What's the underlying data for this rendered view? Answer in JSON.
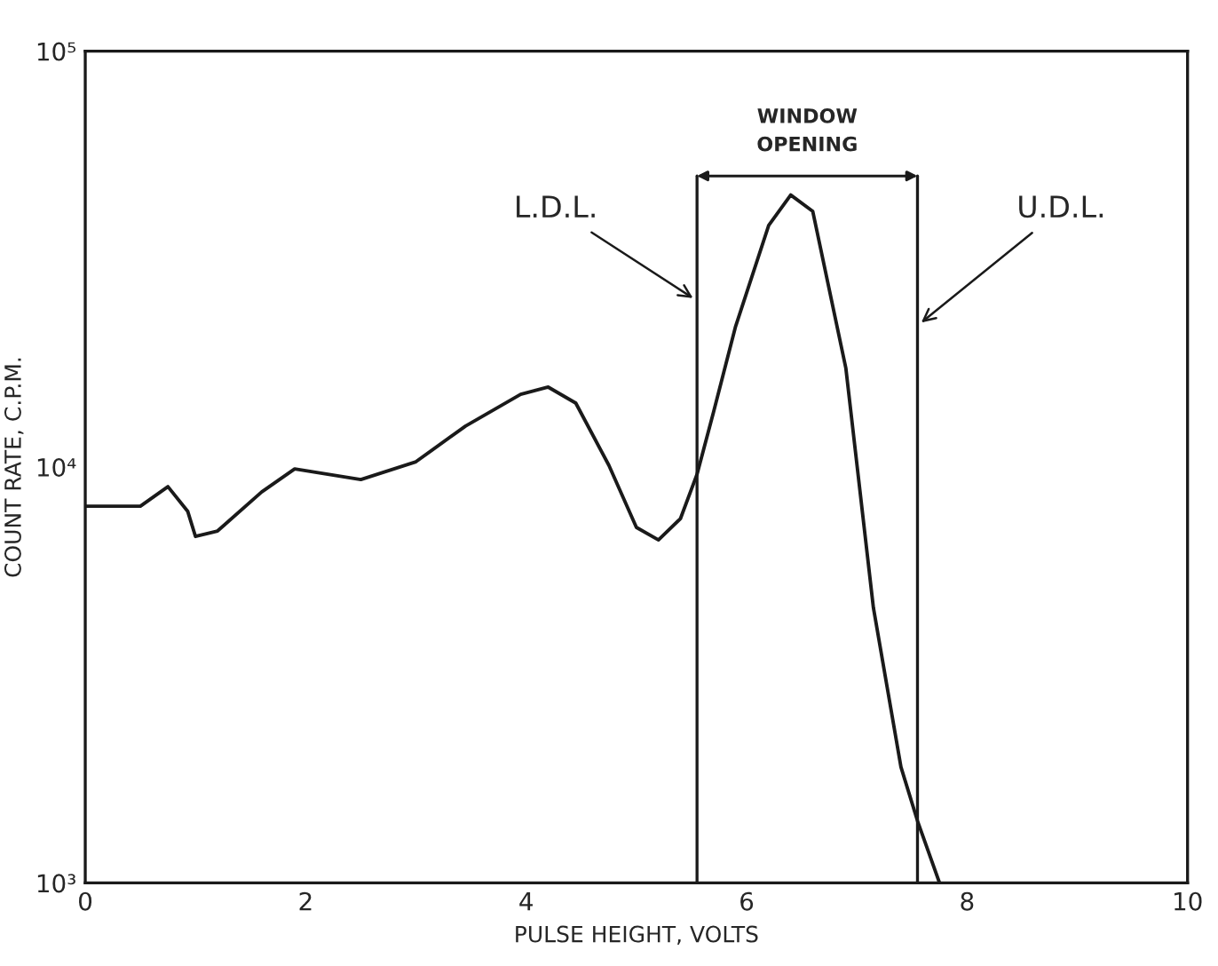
{
  "chart_data": {
    "type": "line",
    "xlabel": "PULSE HEIGHT, VOLTS",
    "ylabel": "COUNT RATE, C.P.M.",
    "x": [
      0,
      0.5,
      0.75,
      0.93,
      1.0,
      1.2,
      1.6,
      1.9,
      2.5,
      3.0,
      3.45,
      3.95,
      4.2,
      4.45,
      4.75,
      5.0,
      5.2,
      5.4,
      5.55,
      5.7,
      5.9,
      6.2,
      6.4,
      6.6,
      6.9,
      7.15,
      7.4,
      7.55,
      7.75
    ],
    "series": [
      {
        "color": "#1a1a1a",
        "values": [
          8050,
          8050,
          8970,
          7820,
          6810,
          7020,
          8710,
          9900,
          9330,
          10300,
          12550,
          14960,
          15570,
          14250,
          10100,
          7160,
          6680,
          7520,
          9610,
          13560,
          21800,
          38100,
          45100,
          41200,
          17300,
          4590,
          1900,
          1410,
          1000
        ]
      }
    ],
    "log": "y",
    "xlim": [
      0,
      10
    ],
    "xticks": [
      0,
      2,
      4,
      6,
      8,
      10
    ],
    "ylim": [
      1000,
      100000
    ],
    "yticks": [
      {
        "value": 1000,
        "label": "10³"
      },
      {
        "value": 10000,
        "label": "10⁴"
      },
      {
        "value": 100000,
        "label": "10⁵"
      }
    ],
    "grid": false,
    "marker": "none",
    "line_style": "solid",
    "ref_lines": [
      {
        "axis": "x",
        "value": 5.55,
        "label": "L.D.L.",
        "color": "#1a1a1a"
      },
      {
        "axis": "x",
        "value": 7.55,
        "label": "U.D.L.",
        "color": "#1a1a1a"
      }
    ],
    "annotations": [
      "WINDOW\nOPENING"
    ]
  }
}
